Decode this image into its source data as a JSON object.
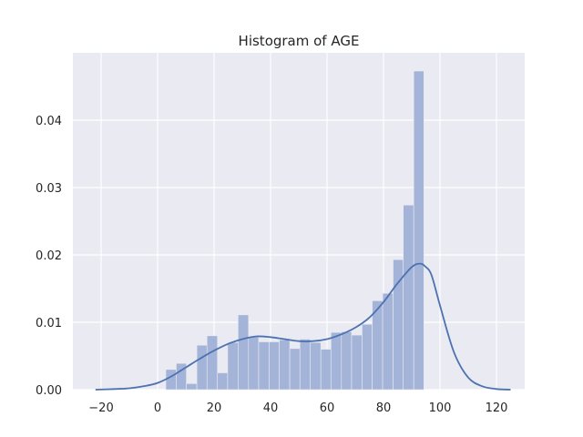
{
  "chart_data": {
    "type": "bar",
    "title": "Histogram of AGE",
    "xlabel": "",
    "ylabel": "",
    "xlim": [
      -30,
      130
    ],
    "ylim": [
      0,
      0.05
    ],
    "grid": true,
    "x_ticks": [
      -20,
      0,
      20,
      40,
      60,
      80,
      100,
      120
    ],
    "x_tick_labels": [
      "−20",
      "0",
      "20",
      "40",
      "60",
      "80",
      "100",
      "120"
    ],
    "y_ticks": [
      0.0,
      0.01,
      0.02,
      0.03,
      0.04
    ],
    "y_tick_labels": [
      "0.00",
      "0.01",
      "0.02",
      "0.03",
      "0.04"
    ],
    "bin_edges": [
      2.9,
      6.6,
      10.2,
      13.9,
      17.5,
      21.2,
      24.8,
      28.5,
      32.2,
      35.8,
      39.5,
      43.1,
      46.8,
      50.4,
      54.1,
      57.8,
      61.4,
      65.1,
      68.7,
      72.4,
      76.0,
      79.7,
      83.4,
      87.0,
      90.7,
      94.3,
      98.0
    ],
    "values": [
      0.003,
      0.0039,
      0.0009,
      0.0066,
      0.008,
      0.0025,
      0.007,
      0.0111,
      0.0078,
      0.0071,
      0.0071,
      0.0074,
      0.0061,
      0.0075,
      0.007,
      0.006,
      0.0085,
      0.0086,
      0.0081,
      0.0097,
      0.0132,
      0.0143,
      0.0193,
      0.0274,
      0.0473,
      0.0
    ],
    "kde": {
      "x": [
        -22,
        -15,
        -10,
        -5,
        0,
        5,
        10,
        15,
        20,
        25,
        30,
        35,
        40,
        45,
        50,
        55,
        60,
        65,
        70,
        75,
        80,
        85,
        90,
        93,
        95,
        97,
        100,
        105,
        110,
        115,
        120,
        125
      ],
      "y": [
        0.0,
        0.0001,
        0.0002,
        0.0005,
        0.001,
        0.002,
        0.0033,
        0.0046,
        0.0058,
        0.0068,
        0.0075,
        0.0079,
        0.0078,
        0.0075,
        0.0072,
        0.0072,
        0.0075,
        0.0082,
        0.0092,
        0.0107,
        0.013,
        0.0158,
        0.0182,
        0.0187,
        0.0182,
        0.017,
        0.0125,
        0.0055,
        0.0018,
        0.0005,
        0.0001,
        0.0
      ]
    },
    "colors": {
      "bar": "#a4b4d8",
      "kde": "#4c72b0",
      "background": "#eaeaf2",
      "grid": "#ffffff"
    }
  }
}
